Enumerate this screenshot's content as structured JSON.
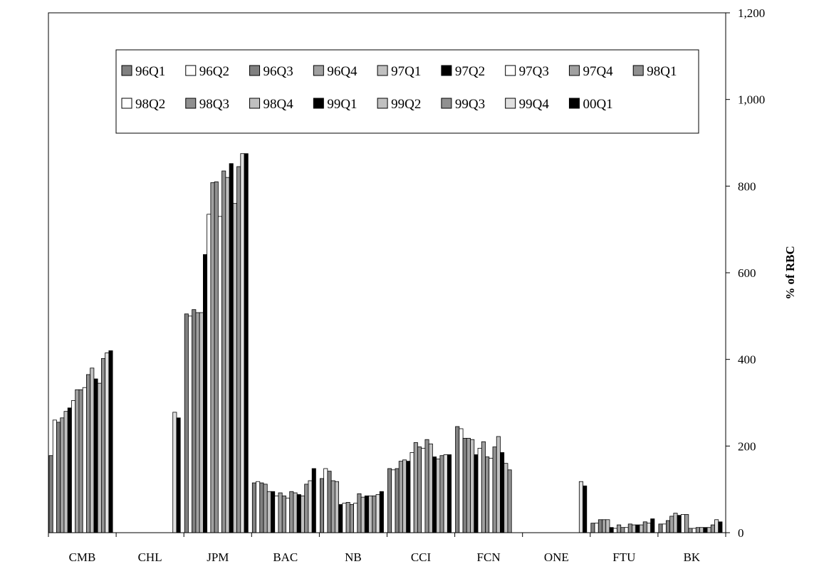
{
  "chart_data": {
    "type": "bar",
    "title": "",
    "xlabel": "",
    "ylabel": "% of RBC",
    "ylim": [
      0,
      1200
    ],
    "yticks": [
      0,
      200,
      400,
      600,
      800,
      1000,
      1200
    ],
    "ytick_labels": [
      "0",
      "200",
      "400",
      "600",
      "800",
      "1,000",
      "1,200"
    ],
    "y_axis_side": "right",
    "grid": false,
    "legend_position": "top",
    "categories": [
      "CMB",
      "CHL",
      "JPM",
      "BAC",
      "NB",
      "CCI",
      "FCN",
      "ONE",
      "FTU",
      "BK"
    ],
    "series": [
      {
        "name": "96Q1",
        "color": "#808080",
        "values": [
          178,
          null,
          505,
          115,
          125,
          148,
          245,
          null,
          22,
          20
        ]
      },
      {
        "name": "96Q2",
        "color": "#ffffff",
        "values": [
          260,
          null,
          500,
          118,
          148,
          145,
          240,
          null,
          22,
          20
        ]
      },
      {
        "name": "96Q3",
        "color": "#808080",
        "values": [
          255,
          null,
          515,
          115,
          142,
          148,
          218,
          null,
          30,
          28
        ]
      },
      {
        "name": "96Q4",
        "color": "#a0a0a0",
        "values": [
          265,
          null,
          508,
          112,
          120,
          165,
          218,
          null,
          30,
          38
        ]
      },
      {
        "name": "97Q1",
        "color": "#c0c0c0",
        "values": [
          280,
          null,
          508,
          95,
          118,
          168,
          215,
          null,
          30,
          45
        ]
      },
      {
        "name": "97Q2",
        "color": "#000000",
        "values": [
          288,
          null,
          642,
          95,
          65,
          165,
          180,
          null,
          12,
          40
        ]
      },
      {
        "name": "97Q3",
        "color": "#ffffff",
        "values": [
          305,
          null,
          735,
          85,
          68,
          185,
          195,
          null,
          10,
          42
        ]
      },
      {
        "name": "97Q4",
        "color": "#a0a0a0",
        "values": [
          330,
          null,
          808,
          92,
          70,
          208,
          210,
          null,
          18,
          42
        ]
      },
      {
        "name": "98Q1",
        "color": "#909090",
        "values": [
          330,
          null,
          810,
          85,
          65,
          198,
          175,
          null,
          12,
          10
        ]
      },
      {
        "name": "98Q2",
        "color": "#ffffff",
        "values": [
          335,
          null,
          730,
          80,
          68,
          195,
          172,
          null,
          12,
          10
        ]
      },
      {
        "name": "98Q3",
        "color": "#909090",
        "values": [
          365,
          null,
          835,
          95,
          90,
          215,
          198,
          null,
          20,
          12
        ]
      },
      {
        "name": "98Q4",
        "color": "#c0c0c0",
        "values": [
          380,
          null,
          820,
          92,
          82,
          205,
          222,
          null,
          18,
          12
        ]
      },
      {
        "name": "99Q1",
        "color": "#000000",
        "values": [
          355,
          null,
          852,
          88,
          85,
          175,
          185,
          null,
          18,
          12
        ]
      },
      {
        "name": "99Q2",
        "color": "#c0c0c0",
        "values": [
          345,
          null,
          760,
          85,
          85,
          170,
          160,
          null,
          18,
          12
        ]
      },
      {
        "name": "99Q3",
        "color": "#909090",
        "values": [
          402,
          null,
          845,
          112,
          85,
          178,
          145,
          null,
          25,
          18
        ]
      },
      {
        "name": "99Q4",
        "color": "#e0e0e0",
        "values": [
          415,
          278,
          875,
          120,
          88,
          180,
          null,
          118,
          22,
          30
        ]
      },
      {
        "name": "00Q1",
        "color": "#000000",
        "values": [
          420,
          265,
          875,
          148,
          95,
          180,
          null,
          108,
          32,
          25
        ]
      }
    ]
  }
}
